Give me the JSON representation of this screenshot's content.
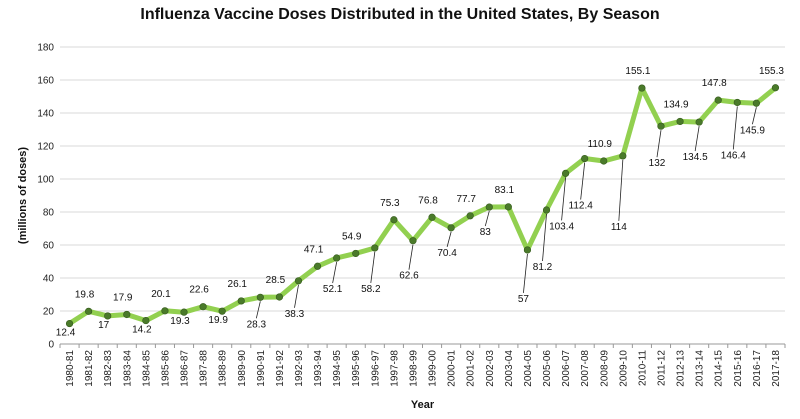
{
  "chart_data": {
    "type": "line",
    "title": "Influenza Vaccine Doses Distributed in the United States, By Season",
    "xlabel": "Year",
    "ylabel": "(millions of doses)",
    "ylim": [
      0,
      180
    ],
    "yticks": [
      0,
      20,
      40,
      60,
      80,
      100,
      120,
      140,
      160,
      180
    ],
    "grid": true,
    "legend": "none",
    "line_color": "#92d050",
    "marker_color": "#4a7a2a",
    "categories": [
      "1980-81",
      "1981-82",
      "1982-83",
      "1983-84",
      "1984-85",
      "1985-86",
      "1986-87",
      "1987-88",
      "1988-89",
      "1989-90",
      "1990-91",
      "1991-92",
      "1992-93",
      "1993-94",
      "1994-95",
      "1995-96",
      "1996-97",
      "1997-98",
      "1998-99",
      "1999-00",
      "2000-01",
      "2001-02",
      "2002-03",
      "2003-04",
      "2004-05",
      "2005-06",
      "2006-07",
      "2007-08",
      "2008-09",
      "2009-10",
      "2010-11",
      "2011-12",
      "2012-13",
      "2013-14",
      "2014-15",
      "2015-16",
      "2016-17",
      "2017-18"
    ],
    "series": [
      {
        "values": [
          12.4,
          19.8,
          17,
          17.9,
          14.2,
          20.1,
          19.3,
          22.6,
          19.9,
          26.1,
          28.3,
          28.5,
          38.3,
          47.1,
          52.1,
          54.9,
          58.2,
          75.3,
          62.6,
          76.8,
          70.4,
          77.7,
          83,
          83.1,
          57,
          81.2,
          103.4,
          112.4,
          110.9,
          114,
          155.1,
          132,
          134.9,
          134.5,
          147.8,
          146.4,
          145.9,
          155.3
        ],
        "data_labels": [
          "12.4",
          "19.8",
          "17",
          "17.9",
          "14.2",
          "20.1",
          "19.3",
          "22.6",
          "19.9",
          "26.1",
          "28.3",
          "28.5",
          "38.3",
          "47.1",
          "52.1",
          "54.9",
          "58.2",
          "75.3",
          "62.6",
          "76.8",
          "70.4",
          "77.7",
          "83",
          "83.1",
          "57",
          "81.2",
          "103.4",
          "112.4",
          "110.9",
          "114",
          "155.1",
          "132",
          "134.9",
          "134.5",
          "147.8",
          "146.4",
          "145.9",
          "155.3"
        ]
      }
    ]
  }
}
